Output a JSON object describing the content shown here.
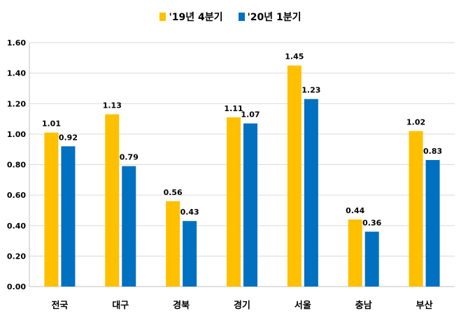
{
  "chart_data": {
    "type": "bar",
    "categories": [
      "전국",
      "대구",
      "경북",
      "경기",
      "서울",
      "충남",
      "부산"
    ],
    "series": [
      {
        "name": "'19년 4분기",
        "color": "#FFC000",
        "values": [
          1.01,
          1.13,
          0.56,
          1.11,
          1.45,
          0.44,
          1.02
        ]
      },
      {
        "name": "'20년 1분기",
        "color": "#0070C0",
        "values": [
          0.92,
          0.79,
          0.43,
          1.07,
          1.23,
          0.36,
          0.83
        ]
      }
    ],
    "ylim": [
      0,
      1.6
    ],
    "yticks": [
      "0.00",
      "0.20",
      "0.40",
      "0.60",
      "0.80",
      "1.00",
      "1.20",
      "1.40",
      "1.60"
    ],
    "grid": true,
    "legend_position": "top-center",
    "data_labels": true
  }
}
